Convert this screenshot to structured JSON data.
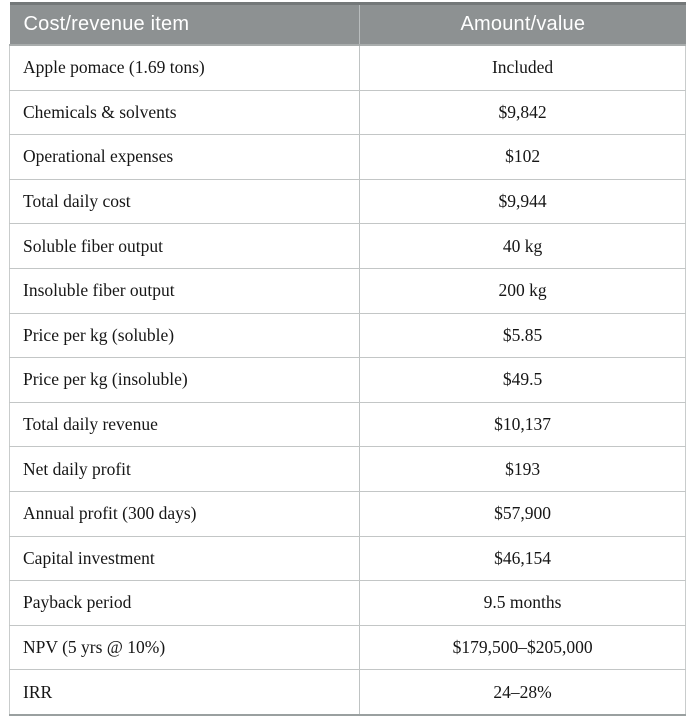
{
  "table": {
    "columns": [
      "Cost/revenue item",
      "Amount/value"
    ],
    "rows": [
      {
        "item": "Apple pomace (1.69 tons)",
        "value": "Included"
      },
      {
        "item": "Chemicals & solvents",
        "value": "$9,842"
      },
      {
        "item": "Operational expenses",
        "value": "$102"
      },
      {
        "item": "Total daily cost",
        "value": "$9,944"
      },
      {
        "item": "Soluble fiber output",
        "value": "40 kg"
      },
      {
        "item": "Insoluble fiber output",
        "value": "200 kg"
      },
      {
        "item": "Price per kg (soluble)",
        "value": "$5.85"
      },
      {
        "item": "Price per kg (insoluble)",
        "value": "$49.5"
      },
      {
        "item": "Total daily revenue",
        "value": "$10,137"
      },
      {
        "item": "Net daily profit",
        "value": "$193"
      },
      {
        "item": "Annual profit (300 days)",
        "value": "$57,900"
      },
      {
        "item": "Capital investment",
        "value": "$46,154"
      },
      {
        "item": "Payback period",
        "value": "9.5 months"
      },
      {
        "item": "NPV (5 yrs @ 10%)",
        "value": "$179,500–$205,000"
      },
      {
        "item": "IRR",
        "value": "24–28%"
      }
    ]
  },
  "colors": {
    "header_background": "#8d9192",
    "header_text": "#ffffff",
    "header_top_rule": "#747879",
    "grid_line": "#c3c6c6",
    "bottom_rule": "#9aa0a0",
    "body_text": "#161616"
  },
  "chart_data": {
    "type": "table",
    "title": "",
    "columns": [
      "Cost/revenue item",
      "Amount/value"
    ],
    "rows": [
      [
        "Apple pomace (1.69 tons)",
        "Included"
      ],
      [
        "Chemicals & solvents",
        "$9,842"
      ],
      [
        "Operational expenses",
        "$102"
      ],
      [
        "Total daily cost",
        "$9,944"
      ],
      [
        "Soluble fiber output",
        "40 kg"
      ],
      [
        "Insoluble fiber output",
        "200 kg"
      ],
      [
        "Price per kg (soluble)",
        "$5.85"
      ],
      [
        "Price per kg (insoluble)",
        "$49.5"
      ],
      [
        "Total daily revenue",
        "$10,137"
      ],
      [
        "Net daily profit",
        "$193"
      ],
      [
        "Annual profit (300 days)",
        "$57,900"
      ],
      [
        "Capital investment",
        "$46,154"
      ],
      [
        "Payback period",
        "9.5 months"
      ],
      [
        "NPV (5 yrs @ 10%)",
        "$179,500–$205,000"
      ],
      [
        "IRR",
        "24–28%"
      ]
    ]
  }
}
